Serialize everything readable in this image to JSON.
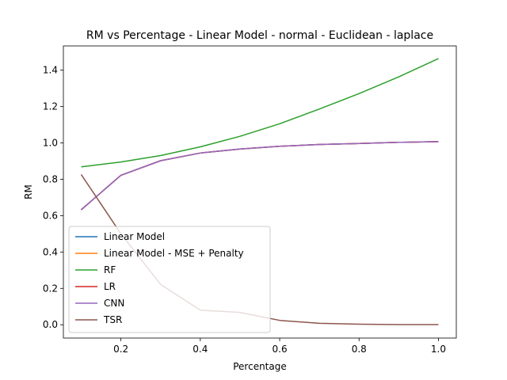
{
  "chart_data": {
    "type": "line",
    "title": "RM vs Percentage - Linear Model - normal - Euclidean - laplace",
    "xlabel": "Percentage",
    "ylabel": "RM",
    "xlim": [
      0.055,
      1.045
    ],
    "ylim": [
      -0.073,
      1.533
    ],
    "xticks": [
      0.2,
      0.4,
      0.6,
      0.8,
      1.0
    ],
    "xtick_labels": [
      "0.2",
      "0.4",
      "0.6",
      "0.8",
      "1.0"
    ],
    "yticks": [
      0.0,
      0.2,
      0.4,
      0.6,
      0.8,
      1.0,
      1.2,
      1.4
    ],
    "ytick_labels": [
      "0.0",
      "0.2",
      "0.4",
      "0.6",
      "0.8",
      "1.0",
      "1.2",
      "1.4"
    ],
    "grid": false,
    "legend_position": "lower-left",
    "x": [
      0.1,
      0.2,
      0.3,
      0.4,
      0.5,
      0.6,
      0.7,
      0.8,
      0.9,
      1.0
    ],
    "series": [
      {
        "name": "Linear Model",
        "color": "#1f77b4",
        "values": [
          0.632,
          0.822,
          0.902,
          0.944,
          0.966,
          0.981,
          0.991,
          0.997,
          1.003,
          1.007
        ]
      },
      {
        "name": "Linear Model - MSE + Penalty",
        "color": "#ff7f0e",
        "values": [
          0.632,
          0.822,
          0.902,
          0.944,
          0.966,
          0.981,
          0.991,
          0.997,
          1.003,
          1.007
        ]
      },
      {
        "name": "RF",
        "color": "#2ca02c",
        "values": [
          0.868,
          0.895,
          0.93,
          0.978,
          1.036,
          1.105,
          1.186,
          1.271,
          1.363,
          1.464
        ]
      },
      {
        "name": "LR",
        "color": "#d62728",
        "values": [
          0.632,
          0.822,
          0.902,
          0.944,
          0.966,
          0.981,
          0.991,
          0.997,
          1.003,
          1.007
        ]
      },
      {
        "name": "CNN",
        "color": "#9467bd",
        "values": [
          0.632,
          0.822,
          0.902,
          0.944,
          0.966,
          0.981,
          0.991,
          0.997,
          1.003,
          1.007
        ]
      },
      {
        "name": "TSR",
        "color": "#8c564b",
        "values": [
          0.826,
          0.5,
          0.222,
          0.08,
          0.068,
          0.024,
          0.008,
          0.003,
          0.001,
          0.001
        ]
      }
    ]
  }
}
